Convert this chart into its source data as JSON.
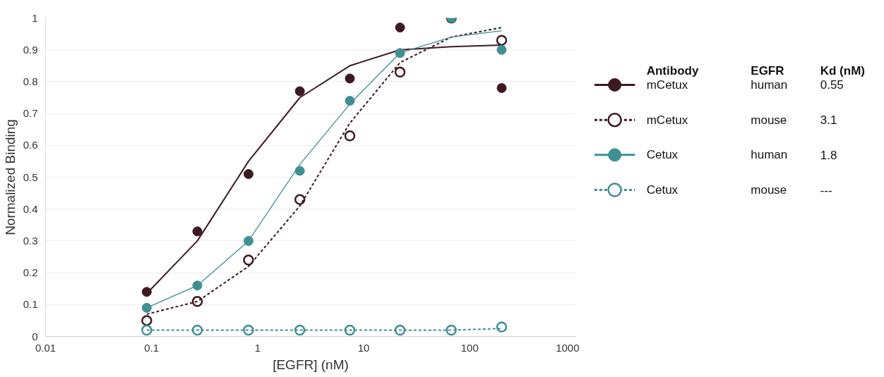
{
  "chart_data": {
    "type": "scatter",
    "xlabel": "[EGFR] (nM)",
    "ylabel": "Normalized Binding",
    "x": [
      0.09,
      0.27,
      0.82,
      2.5,
      7.4,
      22,
      67,
      200
    ],
    "xlim": [
      0.01,
      1000
    ],
    "xticks": [
      0.01,
      0.1,
      1,
      10,
      100,
      1000
    ],
    "log": "x",
    "ylim": [
      0,
      1
    ],
    "yticks": [
      0,
      0.1,
      0.2,
      0.3,
      0.4,
      0.5,
      0.6,
      0.7,
      0.8,
      0.9,
      1
    ],
    "grid": "y",
    "legend": "right",
    "annotations": [
      "Antibody",
      "EGFR",
      "Kd (nM)",
      "human",
      "0.55",
      "mouse",
      "3.1",
      "human",
      "1.8",
      "mouse",
      "---"
    ],
    "series": [
      {
        "name": "mCetux",
        "color": "#3d1a1f",
        "marker": "circle",
        "line_style": "solid",
        "values": [
          0.14,
          0.33,
          0.51,
          0.77,
          0.81,
          0.97,
          null,
          0.78
        ]
      },
      {
        "name": "mCetux",
        "color": "#3d1a1f",
        "marker": "circle_open",
        "line_style": "dashed",
        "values": [
          0.05,
          0.11,
          0.24,
          0.43,
          0.63,
          0.83,
          1.0,
          0.93
        ]
      },
      {
        "name": "Cetux",
        "color": "#3f8f94",
        "marker": "circle",
        "line_style": "solid",
        "values": [
          0.09,
          0.16,
          0.3,
          0.52,
          0.74,
          0.89,
          1.0,
          0.9
        ]
      },
      {
        "name": "Cetux",
        "color": "#3f8f94",
        "marker": "circle_open",
        "line_style": "dashed",
        "values": [
          0.02,
          0.02,
          0.02,
          0.02,
          0.02,
          0.02,
          0.02,
          0.03
        ]
      },
      {
        "type": "line",
        "color": "#3d1a1f",
        "line_style": "solid",
        "values": [
          0.135,
          0.3,
          0.55,
          0.75,
          0.85,
          0.9,
          0.91,
          0.915
        ]
      },
      {
        "type": "line",
        "color": "#3d1a1f",
        "line_style": "dashed",
        "values": [
          0.07,
          0.11,
          0.22,
          0.41,
          0.67,
          0.86,
          0.94,
          0.97
        ]
      },
      {
        "type": "line",
        "color": "#3f8f94",
        "line_style": "solid",
        "values": [
          0.09,
          0.16,
          0.3,
          0.54,
          0.73,
          0.89,
          0.94,
          0.96
        ]
      },
      {
        "type": "line",
        "color": "#3f8f94",
        "line_style": "dashed",
        "values": [
          0.02,
          0.02,
          0.02,
          0.02,
          0.02,
          0.02,
          0.02,
          0.025
        ]
      }
    ]
  }
}
